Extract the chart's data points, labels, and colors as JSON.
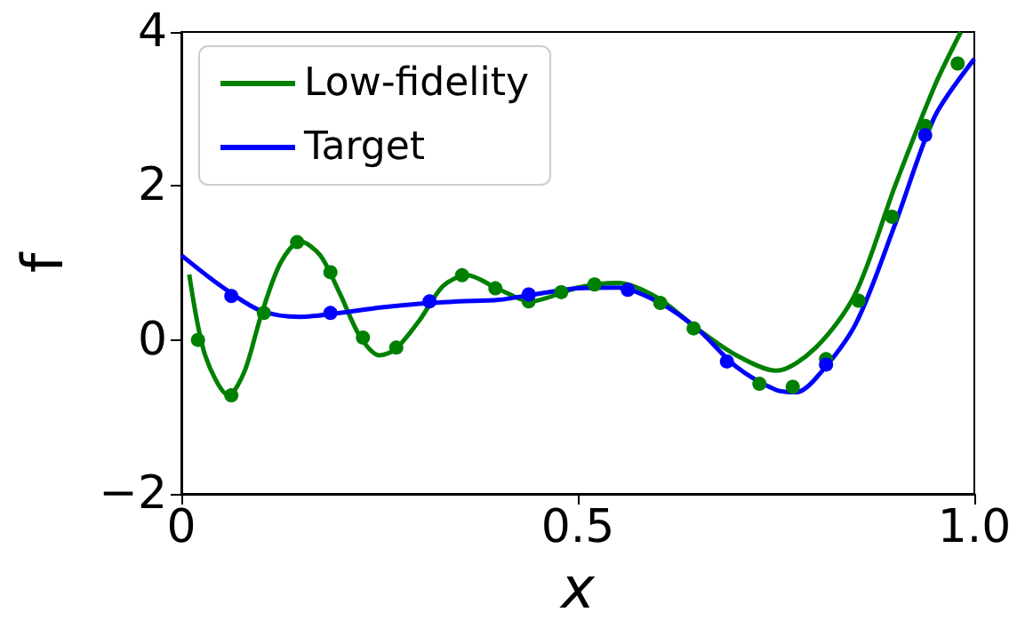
{
  "chart_data": {
    "type": "line",
    "xlabel": "x",
    "ylabel": "f",
    "xlim": [
      0,
      1
    ],
    "ylim": [
      -2,
      4
    ],
    "xticks": [
      0,
      0.5,
      {
        "value": 1,
        "label": "1.0"
      }
    ],
    "yticks": [
      {
        "value": -2,
        "label": "−2"
      },
      0,
      2,
      4
    ],
    "grid": false,
    "legend": "top left",
    "series": [
      {
        "name": "Low-fidelity",
        "color": "#008000",
        "marker": "none",
        "x": [
          0.01,
          0.03,
          0.06,
          0.08,
          0.1,
          0.125,
          0.15,
          0.175,
          0.2,
          0.225,
          0.25,
          0.27,
          0.3,
          0.33,
          0.36,
          0.4,
          0.44,
          0.5,
          0.55,
          0.6,
          0.65,
          0.7,
          0.75,
          0.8,
          0.85,
          0.9,
          0.95,
          0.983
        ],
        "values": [
          0.85,
          -0.2,
          -0.72,
          -0.4,
          0.3,
          1.0,
          1.28,
          1.1,
          0.6,
          0.05,
          -0.2,
          -0.12,
          0.25,
          0.7,
          0.84,
          0.66,
          0.5,
          0.68,
          0.74,
          0.55,
          0.15,
          -0.2,
          -0.4,
          -0.1,
          0.6,
          2.0,
          3.3,
          4.0
        ]
      },
      {
        "name": "Target",
        "color": "#0000ff",
        "marker": "none",
        "x": [
          0,
          0.05,
          0.1,
          0.15,
          0.2,
          0.25,
          0.3,
          0.35,
          0.4,
          0.45,
          0.5,
          0.55,
          0.6,
          0.65,
          0.7,
          0.75,
          0.775,
          0.8,
          0.85,
          0.9,
          0.95,
          1.0
        ],
        "values": [
          1.1,
          0.7,
          0.38,
          0.3,
          0.35,
          0.42,
          0.47,
          0.5,
          0.52,
          0.6,
          0.67,
          0.68,
          0.5,
          0.15,
          -0.35,
          -0.65,
          -0.68,
          -0.5,
          0.2,
          1.5,
          2.9,
          3.65
        ]
      },
      {
        "color": "#008000",
        "type": "scatter",
        "marker": "circle",
        "x": [
          0.021,
          0.063,
          0.104,
          0.146,
          0.188,
          0.229,
          0.271,
          0.313,
          0.354,
          0.396,
          0.438,
          0.479,
          0.521,
          0.563,
          0.604,
          0.646,
          0.688,
          0.729,
          0.771,
          0.813,
          0.854,
          0.896,
          0.938,
          0.979
        ],
        "values": [
          0.0,
          -0.72,
          0.35,
          1.27,
          0.88,
          0.03,
          -0.1,
          null,
          0.84,
          0.67,
          0.5,
          0.62,
          0.72,
          null,
          0.48,
          0.15,
          null,
          -0.57,
          -0.61,
          -0.25,
          0.51,
          1.6,
          2.78,
          3.59
        ]
      },
      {
        "color": "#0000ff",
        "type": "scatter",
        "marker": "circle",
        "x": [
          0.063,
          0.188,
          0.313,
          0.438,
          0.563,
          0.688,
          0.813,
          0.938
        ],
        "values": [
          0.57,
          0.35,
          0.5,
          0.59,
          0.65,
          -0.28,
          -0.32,
          2.66
        ]
      }
    ]
  }
}
